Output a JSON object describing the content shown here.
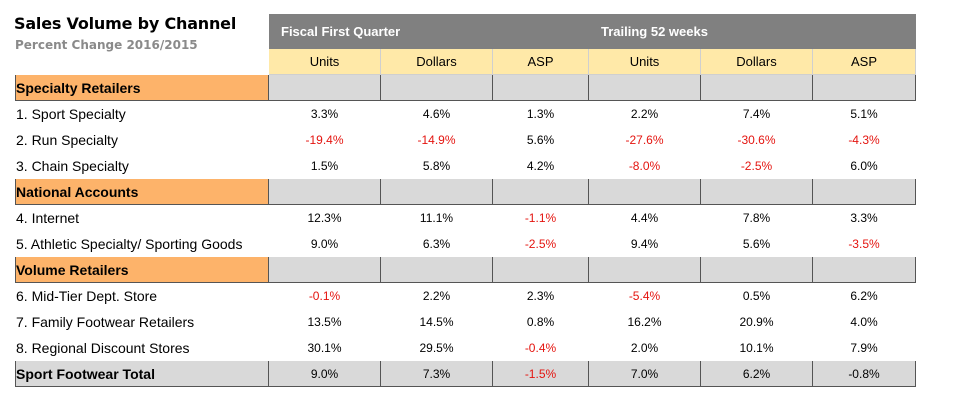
{
  "title": "Sales Volume by Channel",
  "subtitle": "Percent Change 2016/2015",
  "groups": [
    "Fiscal First Quarter",
    "Trailing 52 weeks"
  ],
  "columns": [
    "Units",
    "Dollars",
    "ASP",
    "Units",
    "Dollars",
    "ASP"
  ],
  "sections": [
    {
      "name": "Specialty Retailers",
      "rows": [
        {
          "label": "1. Sport Specialty",
          "values": [
            "3.3%",
            "4.6%",
            "1.3%",
            "2.2%",
            "7.4%",
            "5.1%"
          ],
          "negative": [
            false,
            false,
            false,
            false,
            false,
            false
          ]
        },
        {
          "label": "2. Run Specialty",
          "values": [
            "-19.4%",
            "-14.9%",
            "5.6%",
            "-27.6%",
            "-30.6%",
            "-4.3%"
          ],
          "negative": [
            true,
            true,
            false,
            true,
            true,
            true
          ]
        },
        {
          "label": "3. Chain Specialty",
          "values": [
            "1.5%",
            "5.8%",
            "4.2%",
            "-8.0%",
            "-2.5%",
            "6.0%"
          ],
          "negative": [
            false,
            false,
            false,
            true,
            true,
            false
          ]
        }
      ]
    },
    {
      "name": "National Accounts",
      "rows": [
        {
          "label": "4. Internet",
          "values": [
            "12.3%",
            "11.1%",
            "-1.1%",
            "4.4%",
            "7.8%",
            "3.3%"
          ],
          "negative": [
            false,
            false,
            true,
            false,
            false,
            false
          ]
        },
        {
          "label": "5. Athletic Specialty/ Sporting Goods",
          "values": [
            "9.0%",
            "6.3%",
            "-2.5%",
            "9.4%",
            "5.6%",
            "-3.5%"
          ],
          "negative": [
            false,
            false,
            true,
            false,
            false,
            true
          ]
        }
      ]
    },
    {
      "name": "Volume Retailers",
      "rows": [
        {
          "label": "6. Mid-Tier Dept. Store",
          "values": [
            "-0.1%",
            "2.2%",
            "2.3%",
            "-5.4%",
            "0.5%",
            "6.2%"
          ],
          "negative": [
            true,
            false,
            false,
            true,
            false,
            false
          ]
        },
        {
          "label": "7. Family Footwear Retailers",
          "values": [
            "13.5%",
            "14.5%",
            "0.8%",
            "16.2%",
            "20.9%",
            "4.0%"
          ],
          "negative": [
            false,
            false,
            false,
            false,
            false,
            false
          ]
        },
        {
          "label": "8. Regional Discount Stores",
          "values": [
            "30.1%",
            "29.5%",
            "-0.4%",
            "2.0%",
            "10.1%",
            "7.9%"
          ],
          "negative": [
            false,
            false,
            true,
            false,
            false,
            false
          ]
        }
      ]
    }
  ],
  "total": {
    "label": "Sport Footwear Total",
    "values": [
      "9.0%",
      "7.3%",
      "-1.5%",
      "7.0%",
      "6.2%",
      "-0.8%"
    ],
    "negative": [
      false,
      false,
      true,
      false,
      false,
      false
    ]
  },
  "colors": {
    "group_header": "#808080",
    "column_header": "#ffe9a8",
    "section_label": "#fdb36a",
    "section_fill": "#d9d9d9",
    "negative_text": "#e4140f"
  }
}
